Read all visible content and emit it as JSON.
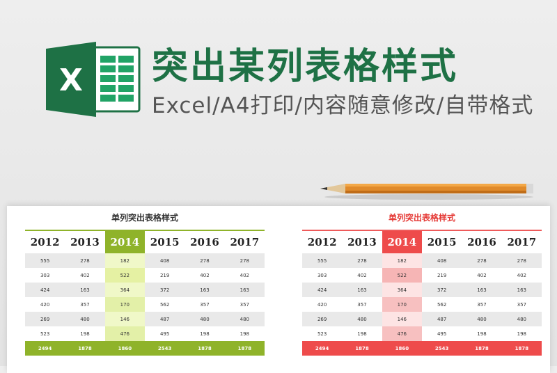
{
  "header": {
    "title": "突出某列表格样式",
    "subtitle": "Excel/A4打印/内容随意修改/自带格式",
    "logo_letter": "X"
  },
  "panels": [
    {
      "title": "单列突出表格样式",
      "accent": "#8fb32a",
      "highlight_col": 2,
      "years": [
        "2012",
        "2013",
        "2014",
        "2015",
        "2016",
        "2017"
      ],
      "rows": [
        [
          "555",
          "278",
          "182",
          "408",
          "278",
          "278"
        ],
        [
          "303",
          "402",
          "522",
          "219",
          "402",
          "402"
        ],
        [
          "424",
          "163",
          "364",
          "372",
          "163",
          "163"
        ],
        [
          "420",
          "357",
          "170",
          "562",
          "357",
          "357"
        ],
        [
          "269",
          "480",
          "146",
          "487",
          "480",
          "480"
        ],
        [
          "523",
          "198",
          "476",
          "495",
          "198",
          "198"
        ]
      ],
      "totals": [
        "2494",
        "1878",
        "1860",
        "2543",
        "1878",
        "1878"
      ]
    },
    {
      "title": "单列突出表格样式",
      "accent": "#ee4b4b",
      "highlight_col": 2,
      "years": [
        "2012",
        "2013",
        "2014",
        "2015",
        "2016",
        "2017"
      ],
      "rows": [
        [
          "555",
          "278",
          "182",
          "408",
          "278",
          "278"
        ],
        [
          "303",
          "402",
          "522",
          "219",
          "402",
          "402"
        ],
        [
          "424",
          "163",
          "364",
          "372",
          "163",
          "163"
        ],
        [
          "420",
          "357",
          "170",
          "562",
          "357",
          "357"
        ],
        [
          "269",
          "480",
          "146",
          "487",
          "480",
          "480"
        ],
        [
          "523",
          "198",
          "476",
          "495",
          "198",
          "198"
        ]
      ],
      "totals": [
        "2494",
        "1878",
        "1860",
        "2543",
        "1878",
        "1878"
      ]
    }
  ]
}
